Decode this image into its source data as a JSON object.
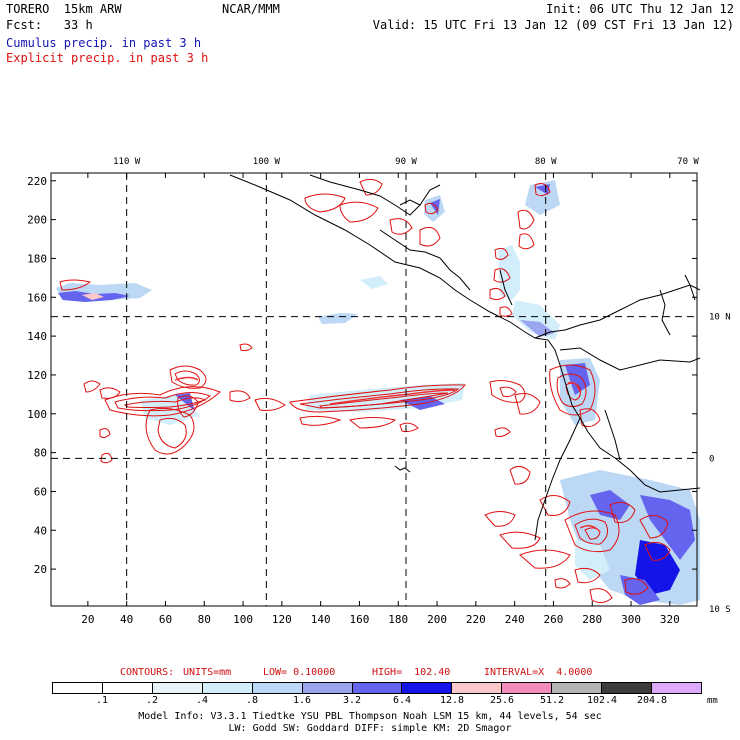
{
  "header": {
    "model": "TORERO  15km ARW",
    "org": "NCAR/MMM",
    "init": "Init: 06 UTC Thu 12 Jan 12",
    "fcst": "Fcst:   33 h",
    "valid": "Valid: 15 UTC Fri 13 Jan 12 (09 CST Fri 13 Jan 12)",
    "cumulus_label": "Cumulus precip. in past 3 h",
    "explicit_label": "Explicit precip. in past 3 h"
  },
  "map": {
    "top_lon_labels": [
      "110 W",
      "100 W",
      "90 W",
      "80 W",
      "70 W"
    ],
    "right_lat_labels": [
      "10 N",
      "0",
      "10 S"
    ],
    "left_ticks": [
      "220",
      "200",
      "180",
      "160",
      "140",
      "120",
      "100",
      "80",
      "60",
      "40",
      "20"
    ],
    "bottom_ticks": [
      "20",
      "40",
      "60",
      "80",
      "100",
      "120",
      "140",
      "160",
      "180",
      "200",
      "220",
      "240",
      "260",
      "280",
      "300",
      "320"
    ],
    "grid_x_values": [
      40,
      112,
      184,
      256
    ],
    "grid_y_values": [
      150,
      77
    ]
  },
  "contours": {
    "title": "CONTOURS:",
    "units": "UNITS=mm",
    "low": "LOW= 0.10000",
    "high": "HIGH=  102.40",
    "interval": "INTERVAL=X  4.0000"
  },
  "legend": {
    "labels": [
      ".1",
      ".2",
      ".4",
      ".8",
      "1.6",
      "3.2",
      "6.4",
      "12.8",
      "25.6",
      "51.2",
      "102.4",
      "204.8"
    ],
    "unit": "mm",
    "colors": [
      "#ffffff",
      "#ffffff",
      "#e8f4f8",
      "#d2eefa",
      "#bcd8f4",
      "#9ca6f0",
      "#6464ee",
      "#1414e8",
      "#fac8c8",
      "#f08cbc",
      "#b4b4b4",
      "#3c3c3c",
      "#dcaaf6"
    ]
  },
  "footer": {
    "line1": "Model Info: V3.3.1    Tiedtke YSU PBL  Thompson     Noah LSM  15 km,   44 levels,   54 sec",
    "line2": "LW: Godd SW: Goddard DIFF: simple KM: 2D Smagor"
  }
}
